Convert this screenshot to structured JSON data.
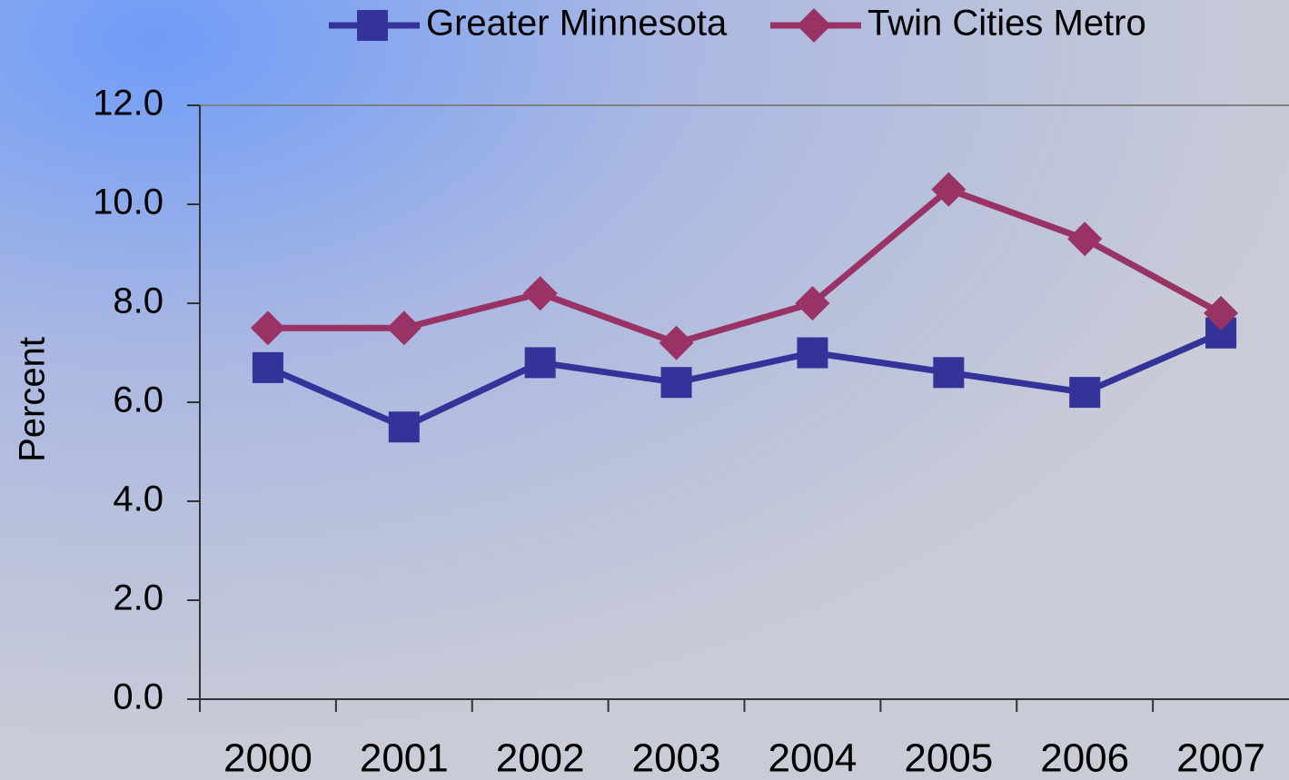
{
  "chart_data": {
    "type": "line",
    "ylabel": "Percent",
    "categories": [
      "2000",
      "2001",
      "2002",
      "2003",
      "2004",
      "2005",
      "2006",
      "2007"
    ],
    "series": [
      {
        "name": "Greater Minnesota",
        "color": "#333399",
        "marker": "square",
        "values": [
          6.7,
          5.5,
          6.8,
          6.4,
          7.0,
          6.6,
          6.2,
          7.4
        ]
      },
      {
        "name": "Twin Cities Metro",
        "color": "#993366",
        "marker": "diamond",
        "values": [
          7.5,
          7.5,
          8.2,
          7.2,
          8.0,
          10.3,
          9.3,
          7.8
        ]
      }
    ],
    "ylim": [
      0,
      12
    ],
    "yticks": [
      {
        "value": 0,
        "label": "0.0"
      },
      {
        "value": 2,
        "label": "2.0"
      },
      {
        "value": 4,
        "label": "4.0"
      },
      {
        "value": 6,
        "label": "6.0"
      },
      {
        "value": 8,
        "label": "8.0"
      },
      {
        "value": 10,
        "label": "10.0"
      },
      {
        "value": 12,
        "label": "12.0"
      }
    ],
    "legend": "top"
  }
}
